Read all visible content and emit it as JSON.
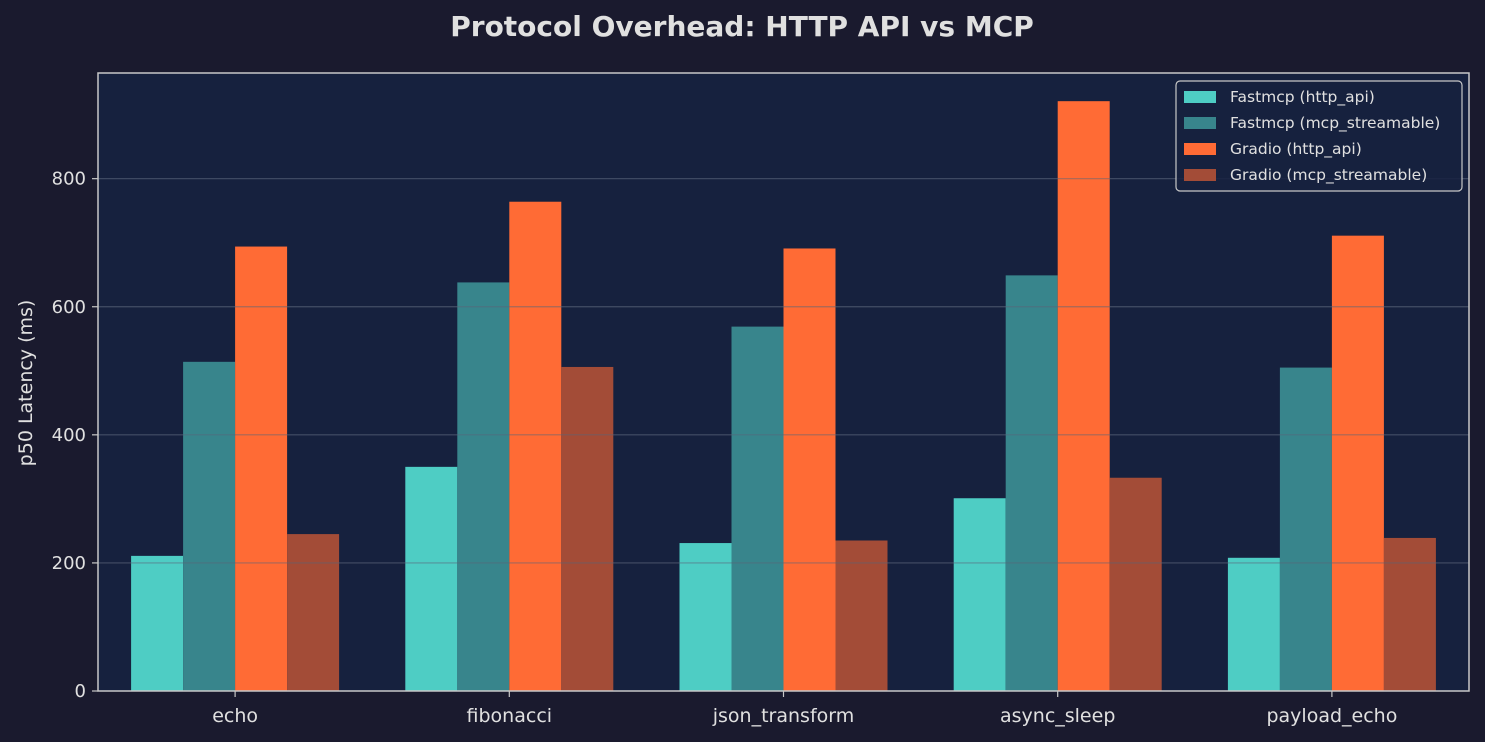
{
  "chart_data": {
    "type": "bar",
    "title": "Protocol Overhead: HTTP API vs MCP",
    "xlabel": "",
    "ylabel": "p50 Latency (ms)",
    "ylim": [
      0,
      965
    ],
    "yticks": [
      0,
      200,
      400,
      600,
      800
    ],
    "grid": true,
    "legend_position": "top-right",
    "categories": [
      "echo",
      "fibonacci",
      "json_transform",
      "async_sleep",
      "payload_echo"
    ],
    "series": [
      {
        "name": "Fastmcp (http_api)",
        "color": "#4ecdc4",
        "values": [
          211,
          350,
          231,
          301,
          208
        ]
      },
      {
        "name": "Fastmcp (mcp_streamable)",
        "color": "#38858c",
        "values": [
          514,
          638,
          569,
          649,
          505
        ]
      },
      {
        "name": "Gradio (http_api)",
        "color": "#ff6b35",
        "values": [
          694,
          764,
          691,
          921,
          711
        ]
      },
      {
        "name": "Gradio (mcp_streamable)",
        "color": "#a34c37",
        "values": [
          245,
          506,
          235,
          333,
          239
        ]
      }
    ],
    "colors": {
      "page_background": "#1a1a2e",
      "plot_background": "#16213e",
      "text": "#e0e0e0",
      "axis": "#c8c8c8",
      "grid": "#2a3450"
    }
  }
}
